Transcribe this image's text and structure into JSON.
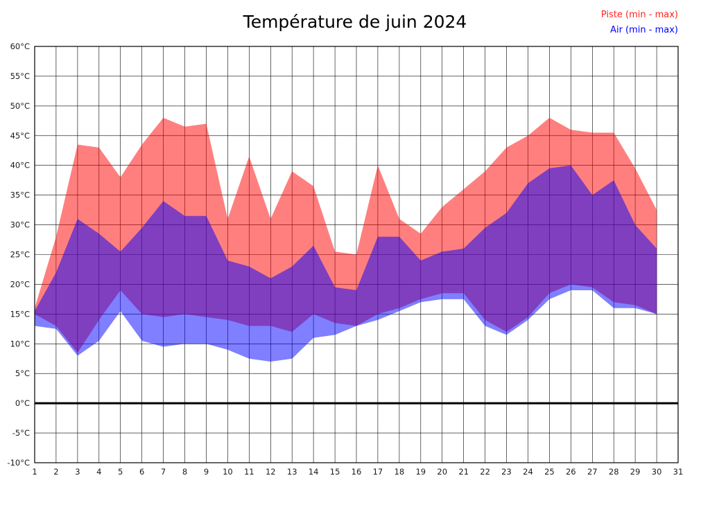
{
  "title": "Température de juin 2024",
  "legend": [
    {
      "label": "Piste (min - max)",
      "color": "#ff2020"
    },
    {
      "label": "Air (min - max)",
      "color": "#0000ff"
    }
  ],
  "chart_data": {
    "type": "area",
    "title": "Température de juin 2024",
    "xlabel": "",
    "ylabel": "",
    "unit": "°C",
    "xlim": [
      1,
      31
    ],
    "ylim": [
      -10,
      60
    ],
    "grid": true,
    "zero_line": true,
    "x_ticks": [
      1,
      2,
      3,
      4,
      5,
      6,
      7,
      8,
      9,
      10,
      11,
      12,
      13,
      14,
      15,
      16,
      17,
      18,
      19,
      20,
      21,
      22,
      23,
      24,
      25,
      26,
      27,
      28,
      29,
      30,
      31
    ],
    "y_ticks": [
      60,
      55,
      50,
      45,
      40,
      35,
      30,
      25,
      20,
      15,
      10,
      5,
      0,
      -5,
      -10
    ],
    "x": [
      1,
      2,
      3,
      4,
      5,
      6,
      7,
      8,
      9,
      10,
      11,
      12,
      13,
      14,
      15,
      16,
      17,
      18,
      19,
      20,
      21,
      22,
      23,
      24,
      25,
      26,
      27,
      28,
      29,
      30
    ],
    "series": [
      {
        "name": "Piste",
        "fill": "rgba(255,0,0,0.5)",
        "max": [
          16,
          28,
          43.5,
          43,
          38,
          43.5,
          48,
          46.5,
          47,
          31,
          41.5,
          31,
          39,
          36.5,
          25.5,
          25,
          40,
          31,
          28.5,
          33,
          36,
          39,
          43,
          45,
          48,
          46,
          45.5,
          45.5,
          39.5,
          32.5
        ],
        "min": [
          15,
          13,
          8.5,
          14,
          19,
          15,
          14.5,
          15,
          14.5,
          14,
          13,
          13,
          12,
          15,
          13.5,
          13,
          15,
          16,
          17.5,
          18.5,
          18.5,
          14,
          12,
          14.5,
          18.5,
          20,
          19.5,
          17,
          16.5,
          15
        ]
      },
      {
        "name": "Air",
        "fill": "rgba(0,0,255,0.5)",
        "max": [
          15.5,
          22,
          31,
          28.5,
          25.5,
          29.5,
          34,
          31.5,
          31.5,
          24,
          23,
          21,
          23,
          26.5,
          19.5,
          19,
          28,
          28,
          24,
          25.5,
          26,
          29.5,
          32,
          37,
          39.5,
          40,
          35,
          37.5,
          30,
          26
        ],
        "min": [
          13,
          12.5,
          8,
          10.5,
          15.5,
          10.5,
          9.5,
          10,
          10,
          9,
          7.5,
          7,
          7.5,
          11,
          11.5,
          13,
          14,
          15.5,
          17,
          17.5,
          17.5,
          13,
          11.5,
          14,
          17.5,
          19,
          19,
          16,
          16,
          15
        ]
      }
    ]
  }
}
